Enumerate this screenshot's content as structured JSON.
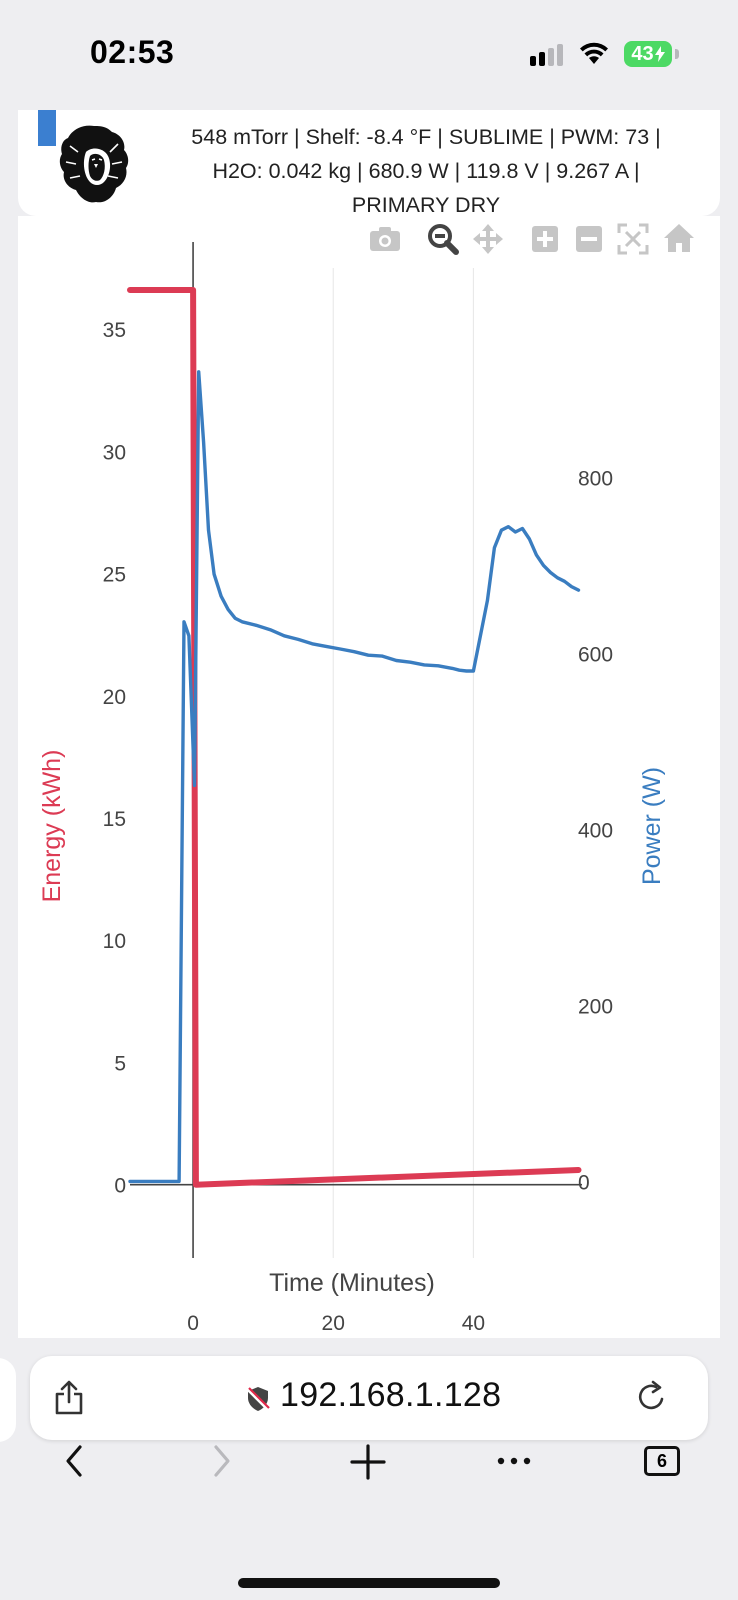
{
  "status_bar": {
    "time": "02:53",
    "battery": "43",
    "icons": [
      "cellular-signal-icon",
      "wifi-icon",
      "battery-charging-icon"
    ]
  },
  "header": {
    "line1": "548 mTorr | Shelf: -8.4 °F | SUBLIME | PWM: 73 |",
    "line2": "H2O: 0.042 kg | 680.9 W | 119.8 V | 9.267 A |",
    "line3": "PRIMARY DRY",
    "accent_color": "#3b7fd0"
  },
  "toolbar": {
    "icons": [
      "camera-icon",
      "zoom-icon",
      "pan-icon",
      "zoom-in-icon",
      "zoom-out-icon",
      "autoscale-icon",
      "reset-axes-icon"
    ],
    "active": "zoom-icon"
  },
  "chart_data": {
    "type": "line",
    "xlabel": "Time (Minutes)",
    "ylabel": "Energy (kWh)",
    "y2label": "Power (W)",
    "xlim": [
      -9,
      55.5
    ],
    "ylim": [
      -3,
      37.5
    ],
    "y2lim": [
      -87,
      1038
    ],
    "x_ticks": [
      0,
      20,
      40
    ],
    "y_ticks": [
      0,
      5,
      10,
      15,
      20,
      25,
      30,
      35
    ],
    "y2_ticks": [
      0,
      200,
      400,
      600,
      800
    ],
    "grid": true,
    "series": [
      {
        "axis": "y",
        "color": "#dc3b54",
        "points": [
          [
            -9,
            36.6
          ],
          [
            0,
            36.6
          ],
          [
            0.2,
            18.5
          ],
          [
            0.4,
            0
          ],
          [
            55,
            0.6
          ]
        ]
      },
      {
        "axis": "y2",
        "color": "#3a7dc0",
        "points": [
          [
            -9,
            0
          ],
          [
            -2,
            0
          ],
          [
            -1.3,
            636
          ],
          [
            -0.6,
            620
          ],
          [
            0.2,
            450
          ],
          [
            0.8,
            920
          ],
          [
            1.5,
            840
          ],
          [
            2.2,
            740
          ],
          [
            3,
            690
          ],
          [
            4,
            665
          ],
          [
            5,
            650
          ],
          [
            6,
            640
          ],
          [
            7,
            636
          ],
          [
            9,
            632
          ],
          [
            11,
            627
          ],
          [
            13,
            620
          ],
          [
            15,
            616
          ],
          [
            17,
            611
          ],
          [
            19,
            608
          ],
          [
            21,
            605
          ],
          [
            23,
            602
          ],
          [
            25,
            598
          ],
          [
            27,
            597
          ],
          [
            29,
            592
          ],
          [
            31,
            590
          ],
          [
            33,
            587
          ],
          [
            35,
            586
          ],
          [
            37,
            583
          ],
          [
            38,
            581
          ],
          [
            39,
            580
          ],
          [
            40,
            580
          ],
          [
            41,
            620
          ],
          [
            42,
            660
          ],
          [
            43,
            720
          ],
          [
            44,
            740
          ],
          [
            45,
            744
          ],
          [
            46,
            738
          ],
          [
            47,
            742
          ],
          [
            48,
            730
          ],
          [
            49,
            712
          ],
          [
            50,
            700
          ],
          [
            51,
            692
          ],
          [
            52,
            686
          ],
          [
            53,
            682
          ],
          [
            54,
            676
          ],
          [
            55,
            672
          ]
        ]
      }
    ]
  },
  "browser": {
    "url": "192.168.1.128",
    "tab_count": "6",
    "icons": [
      "share-icon",
      "not-secure-icon",
      "reload-icon",
      "back-icon",
      "forward-icon",
      "new-tab-icon",
      "more-icon",
      "tabs-icon"
    ]
  }
}
